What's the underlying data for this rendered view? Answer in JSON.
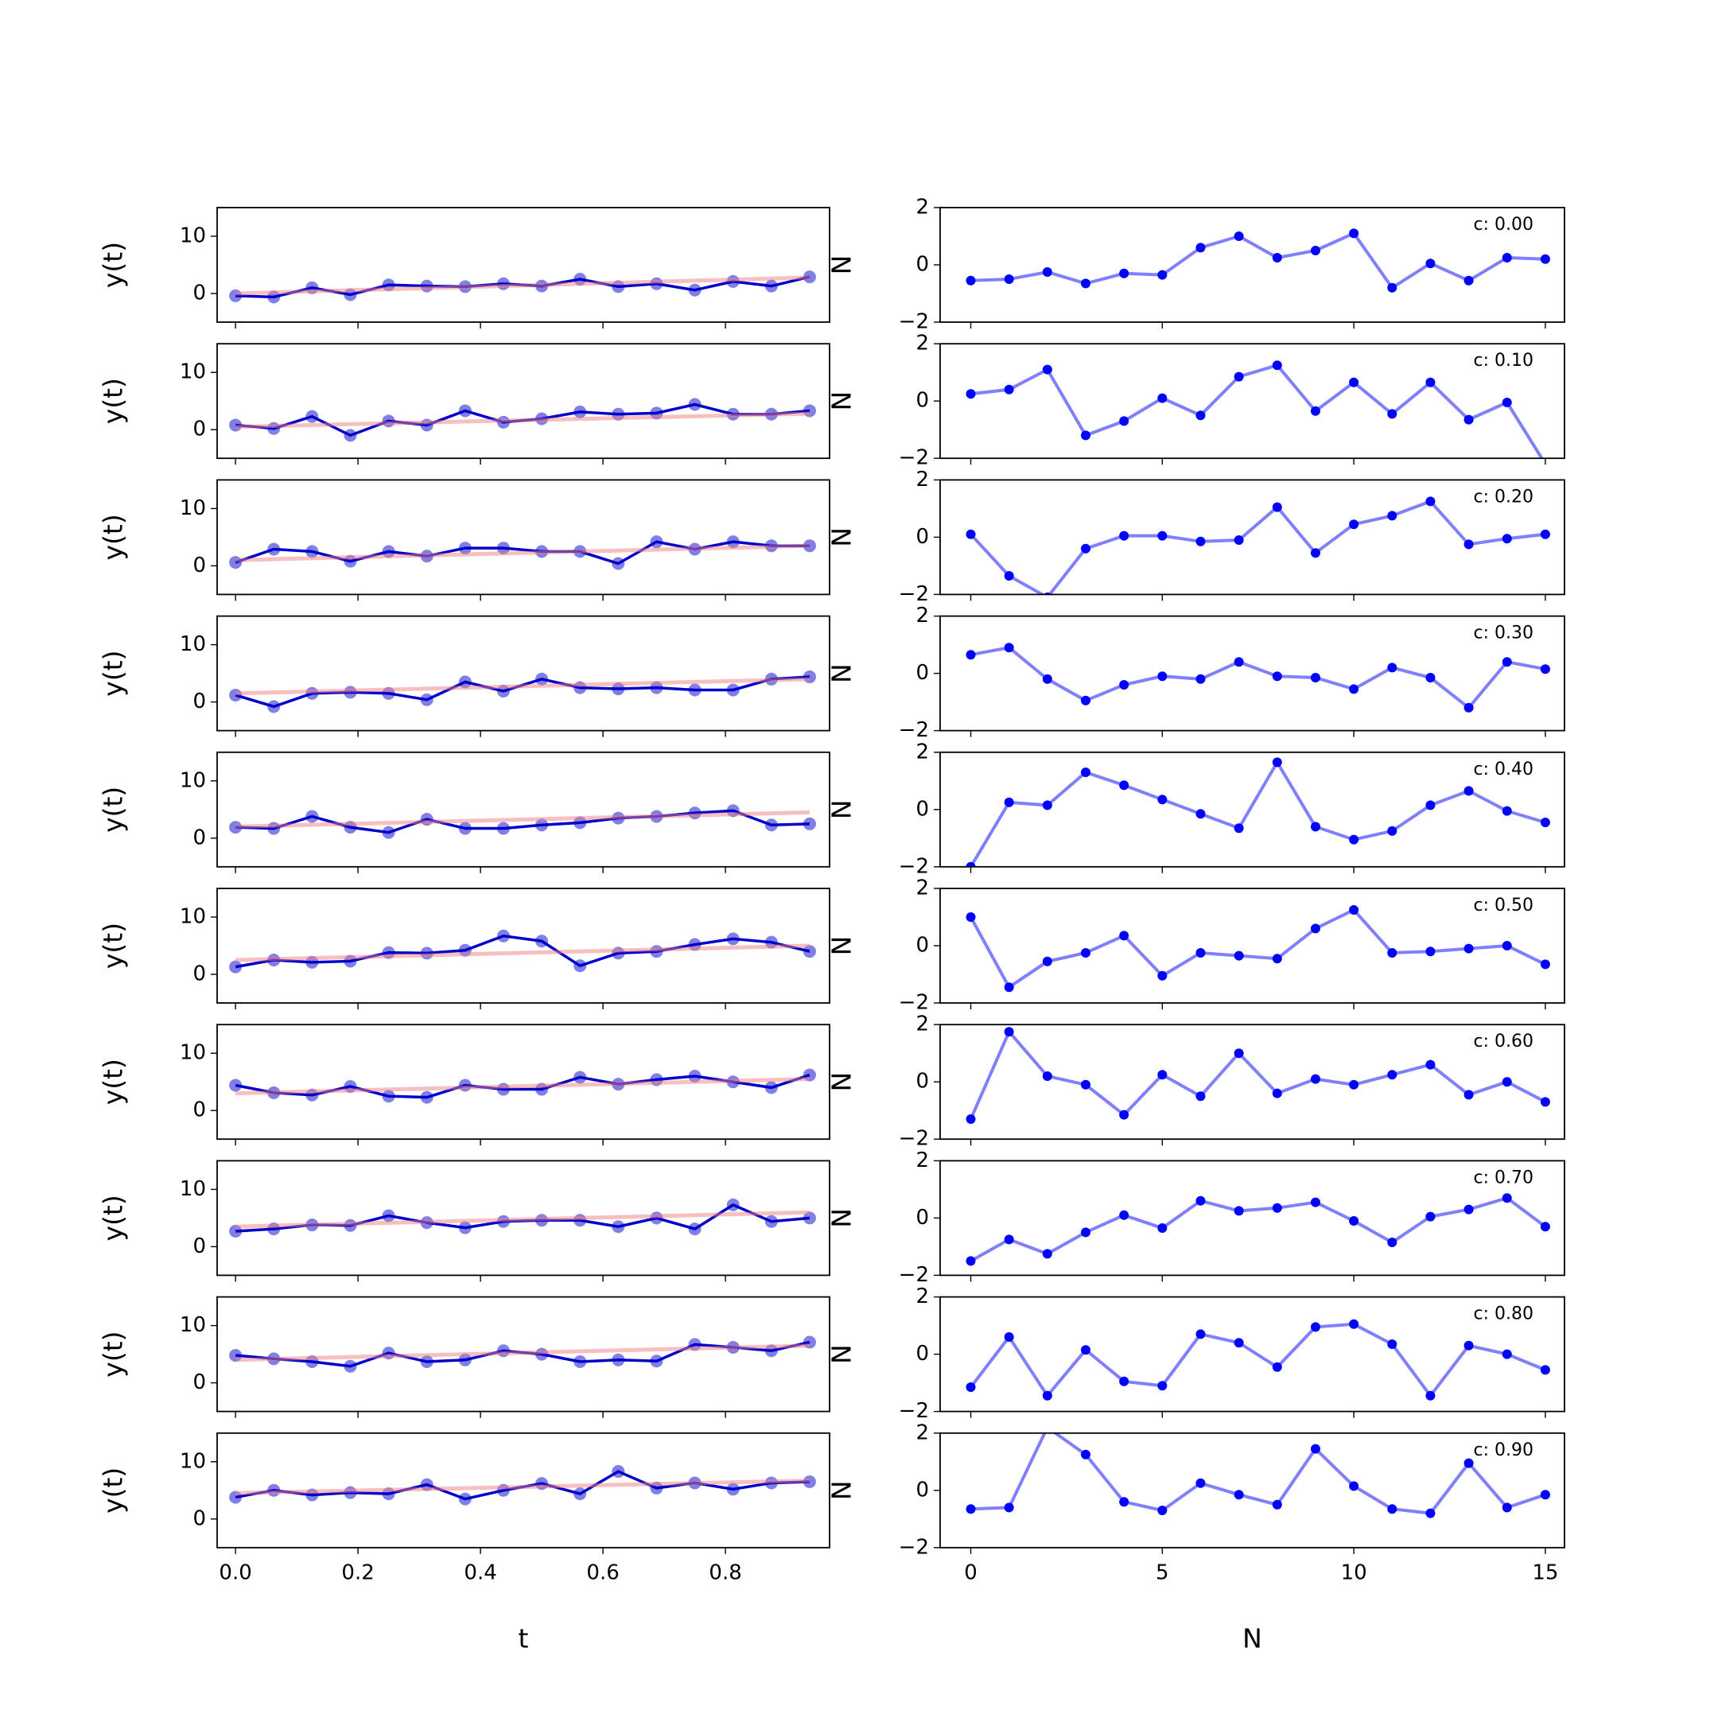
{
  "chart_data": [
    {
      "type": "line",
      "ylabel": "y(t)",
      "x": [
        0,
        0.0625,
        0.125,
        0.1875,
        0.25,
        0.3125,
        0.375,
        0.4375,
        0.5,
        0.5625,
        0.625,
        0.6875,
        0.75,
        0.8125,
        0.875,
        0.9375
      ],
      "xlim": [
        -0.03,
        0.97
      ],
      "ylim": [
        -5,
        15
      ],
      "yticks": [
        0,
        10
      ],
      "series": [
        {
          "color": "#0000cd",
          "values": [
            -0.4,
            -0.6,
            1,
            -0.2,
            1.5,
            1.3,
            1.2,
            1.7,
            1.3,
            2.5,
            1.2,
            1.7,
            0.6,
            2.1,
            1.3,
            2.9
          ]
        },
        {
          "color": "#f08080",
          "x": [
            0,
            0.9375
          ],
          "values": [
            0,
            2.8
          ]
        }
      ]
    },
    {
      "type": "line",
      "ylabel": "N",
      "annotation": "c: 0.00",
      "x": [
        0,
        1,
        2,
        3,
        4,
        5,
        6,
        7,
        8,
        9,
        10,
        11,
        12,
        13,
        14,
        15
      ],
      "xlim": [
        -0.8,
        15.5
      ],
      "ylim": [
        -2,
        2
      ],
      "yticks": [
        {
          "value": -2,
          "label": "−2"
        },
        0,
        2
      ],
      "series": [
        {
          "color": "#0000ff",
          "values": [
            -0.55,
            -0.5,
            -0.25,
            -0.65,
            -0.3,
            -0.35,
            0.6,
            1.0,
            0.25,
            0.5,
            1.1,
            -0.8,
            0.05,
            -0.55,
            0.25,
            0.2
          ]
        }
      ]
    },
    {
      "type": "line",
      "ylabel": "y(t)",
      "x": [
        0,
        0.0625,
        0.125,
        0.1875,
        0.25,
        0.3125,
        0.375,
        0.4375,
        0.5,
        0.5625,
        0.625,
        0.6875,
        0.75,
        0.8125,
        0.875,
        0.9375
      ],
      "xlim": [
        -0.03,
        0.97
      ],
      "ylim": [
        -5,
        15
      ],
      "yticks": [
        0,
        10
      ],
      "series": [
        {
          "color": "#0000cd",
          "values": [
            0.8,
            0.2,
            2.3,
            -1,
            1.5,
            0.8,
            3.3,
            1.3,
            1.9,
            3.1,
            2.7,
            2.9,
            4.4,
            2.7,
            2.7,
            3.3
          ]
        },
        {
          "color": "#f08080",
          "x": [
            0,
            0.9375
          ],
          "values": [
            0.5,
            2.8
          ]
        }
      ]
    },
    {
      "type": "line",
      "ylabel": "N",
      "annotation": "c: 0.10",
      "x": [
        0,
        1,
        2,
        3,
        4,
        5,
        6,
        7,
        8,
        9,
        10,
        11,
        12,
        13,
        14,
        15
      ],
      "xlim": [
        -0.8,
        15.5
      ],
      "ylim": [
        -2,
        2
      ],
      "yticks": [
        {
          "value": -2,
          "label": "−2"
        },
        0,
        2
      ],
      "series": [
        {
          "color": "#0000ff",
          "values": [
            0.25,
            0.4,
            1.1,
            -1.2,
            -0.7,
            0.1,
            -0.5,
            0.85,
            1.25,
            -0.35,
            0.65,
            -0.45,
            0.65,
            -0.65,
            -0.05,
            -2.2
          ]
        }
      ]
    },
    {
      "type": "line",
      "ylabel": "y(t)",
      "x": [
        0,
        0.0625,
        0.125,
        0.1875,
        0.25,
        0.3125,
        0.375,
        0.4375,
        0.5,
        0.5625,
        0.625,
        0.6875,
        0.75,
        0.8125,
        0.875,
        0.9375
      ],
      "xlim": [
        -0.03,
        0.97
      ],
      "ylim": [
        -5,
        15
      ],
      "yticks": [
        0,
        10
      ],
      "series": [
        {
          "color": "#0000cd",
          "values": [
            0.6,
            2.9,
            2.5,
            0.8,
            2.5,
            1.7,
            3.1,
            3.1,
            2.5,
            2.5,
            0.4,
            4.2,
            2.9,
            4.2,
            3.5,
            3.5
          ]
        },
        {
          "color": "#f08080",
          "x": [
            0,
            0.9375
          ],
          "values": [
            1,
            3.5
          ]
        }
      ]
    },
    {
      "type": "line",
      "ylabel": "N",
      "annotation": "c: 0.20",
      "x": [
        0,
        1,
        2,
        3,
        4,
        5,
        6,
        7,
        8,
        9,
        10,
        11,
        12,
        13,
        14,
        15
      ],
      "xlim": [
        -0.8,
        15.5
      ],
      "ylim": [
        -2,
        2
      ],
      "yticks": [
        {
          "value": -2,
          "label": "−2"
        },
        0,
        2
      ],
      "series": [
        {
          "color": "#0000ff",
          "values": [
            0.1,
            -1.35,
            -2.1,
            -0.4,
            0.05,
            0.05,
            -0.15,
            -0.1,
            1.05,
            -0.55,
            0.45,
            0.75,
            1.25,
            -0.25,
            -0.05,
            0.1
          ]
        }
      ]
    },
    {
      "type": "line",
      "ylabel": "y(t)",
      "x": [
        0,
        0.0625,
        0.125,
        0.1875,
        0.25,
        0.3125,
        0.375,
        0.4375,
        0.5,
        0.5625,
        0.625,
        0.6875,
        0.75,
        0.8125,
        0.875,
        0.9375
      ],
      "xlim": [
        -0.03,
        0.97
      ],
      "ylim": [
        -5,
        15
      ],
      "yticks": [
        0,
        10
      ],
      "series": [
        {
          "color": "#0000cd",
          "values": [
            1.2,
            -0.8,
            1.5,
            1.7,
            1.5,
            0.4,
            3.5,
            1.9,
            4,
            2.5,
            2.3,
            2.5,
            2.1,
            2.1,
            4,
            4.4
          ]
        },
        {
          "color": "#f08080",
          "x": [
            0,
            0.9375
          ],
          "values": [
            1.5,
            4
          ]
        }
      ]
    },
    {
      "type": "line",
      "ylabel": "N",
      "annotation": "c: 0.30",
      "x": [
        0,
        1,
        2,
        3,
        4,
        5,
        6,
        7,
        8,
        9,
        10,
        11,
        12,
        13,
        14,
        15
      ],
      "xlim": [
        -0.8,
        15.5
      ],
      "ylim": [
        -2,
        2
      ],
      "yticks": [
        {
          "value": -2,
          "label": "−2"
        },
        0,
        2
      ],
      "series": [
        {
          "color": "#0000ff",
          "values": [
            0.65,
            0.9,
            -0.2,
            -0.95,
            -0.4,
            -0.1,
            -0.2,
            0.4,
            -0.1,
            -0.15,
            -0.55,
            0.2,
            -0.15,
            -1.2,
            0.4,
            0.15
          ]
        }
      ]
    },
    {
      "type": "line",
      "ylabel": "y(t)",
      "x": [
        0,
        0.0625,
        0.125,
        0.1875,
        0.25,
        0.3125,
        0.375,
        0.4375,
        0.5,
        0.5625,
        0.625,
        0.6875,
        0.75,
        0.8125,
        0.875,
        0.9375
      ],
      "xlim": [
        -0.03,
        0.97
      ],
      "ylim": [
        -5,
        15
      ],
      "yticks": [
        0,
        10
      ],
      "series": [
        {
          "color": "#0000cd",
          "values": [
            1.9,
            1.7,
            3.8,
            1.9,
            1,
            3.3,
            1.7,
            1.7,
            2.3,
            2.7,
            3.5,
            3.8,
            4.4,
            4.8,
            2.3,
            2.5
          ]
        },
        {
          "color": "#f08080",
          "x": [
            0,
            0.9375
          ],
          "values": [
            2,
            4.5
          ]
        }
      ]
    },
    {
      "type": "line",
      "ylabel": "N",
      "annotation": "c: 0.40",
      "x": [
        0,
        1,
        2,
        3,
        4,
        5,
        6,
        7,
        8,
        9,
        10,
        11,
        12,
        13,
        14,
        15
      ],
      "xlim": [
        -0.8,
        15.5
      ],
      "ylim": [
        -2,
        2
      ],
      "yticks": [
        {
          "value": -2,
          "label": "−2"
        },
        0,
        2
      ],
      "series": [
        {
          "color": "#0000ff",
          "values": [
            -2.0,
            0.25,
            0.15,
            1.3,
            0.85,
            0.35,
            -0.15,
            -0.65,
            1.65,
            -0.6,
            -1.05,
            -0.75,
            0.15,
            0.65,
            -0.05,
            -0.45
          ]
        }
      ]
    },
    {
      "type": "line",
      "ylabel": "y(t)",
      "x": [
        0,
        0.0625,
        0.125,
        0.1875,
        0.25,
        0.3125,
        0.375,
        0.4375,
        0.5,
        0.5625,
        0.625,
        0.6875,
        0.75,
        0.8125,
        0.875,
        0.9375
      ],
      "xlim": [
        -0.03,
        0.97
      ],
      "ylim": [
        -5,
        15
      ],
      "yticks": [
        0,
        10
      ],
      "series": [
        {
          "color": "#0000cd",
          "values": [
            1.3,
            2.5,
            2.1,
            2.3,
            3.8,
            3.7,
            4.2,
            6.7,
            5.8,
            1.5,
            3.7,
            4,
            5.2,
            6.2,
            5.6,
            4
          ]
        },
        {
          "color": "#f08080",
          "x": [
            0,
            0.9375
          ],
          "values": [
            2.5,
            5
          ]
        }
      ]
    },
    {
      "type": "line",
      "ylabel": "N",
      "annotation": "c: 0.50",
      "x": [
        0,
        1,
        2,
        3,
        4,
        5,
        6,
        7,
        8,
        9,
        10,
        11,
        12,
        13,
        14,
        15
      ],
      "xlim": [
        -0.8,
        15.5
      ],
      "ylim": [
        -2,
        2
      ],
      "yticks": [
        {
          "value": -2,
          "label": "−2"
        },
        0,
        2
      ],
      "series": [
        {
          "color": "#0000ff",
          "values": [
            1.0,
            -1.45,
            -0.55,
            -0.25,
            0.35,
            -1.05,
            -0.25,
            -0.35,
            -0.45,
            0.6,
            1.25,
            -0.25,
            -0.2,
            -0.1,
            0,
            -0.65
          ]
        }
      ]
    },
    {
      "type": "line",
      "ylabel": "y(t)",
      "x": [
        0,
        0.0625,
        0.125,
        0.1875,
        0.25,
        0.3125,
        0.375,
        0.4375,
        0.5,
        0.5625,
        0.625,
        0.6875,
        0.75,
        0.8125,
        0.875,
        0.9375
      ],
      "xlim": [
        -0.03,
        0.97
      ],
      "ylim": [
        -5,
        15
      ],
      "yticks": [
        0,
        10
      ],
      "series": [
        {
          "color": "#0000cd",
          "values": [
            4.4,
            3.1,
            2.7,
            4.2,
            2.5,
            2.3,
            4.4,
            3.7,
            3.7,
            5.8,
            4.6,
            5.4,
            6,
            5,
            4,
            6.2
          ]
        },
        {
          "color": "#f08080",
          "x": [
            0,
            0.9375
          ],
          "values": [
            3,
            5.5
          ]
        }
      ]
    },
    {
      "type": "line",
      "ylabel": "N",
      "annotation": "c: 0.60",
      "x": [
        0,
        1,
        2,
        3,
        4,
        5,
        6,
        7,
        8,
        9,
        10,
        11,
        12,
        13,
        14,
        15
      ],
      "xlim": [
        -0.8,
        15.5
      ],
      "ylim": [
        -2,
        2
      ],
      "yticks": [
        {
          "value": -2,
          "label": "−2"
        },
        0,
        2
      ],
      "series": [
        {
          "color": "#0000ff",
          "values": [
            -1.3,
            1.75,
            0.2,
            -0.1,
            -1.15,
            0.25,
            -0.5,
            1.0,
            -0.4,
            0.1,
            -0.1,
            0.25,
            0.6,
            -0.45,
            0,
            -0.7
          ]
        }
      ]
    },
    {
      "type": "line",
      "ylabel": "y(t)",
      "x": [
        0,
        0.0625,
        0.125,
        0.1875,
        0.25,
        0.3125,
        0.375,
        0.4375,
        0.5,
        0.5625,
        0.625,
        0.6875,
        0.75,
        0.8125,
        0.875,
        0.9375
      ],
      "xlim": [
        -0.03,
        0.97
      ],
      "ylim": [
        -5,
        15
      ],
      "yticks": [
        0,
        10
      ],
      "series": [
        {
          "color": "#0000cd",
          "values": [
            2.7,
            3.1,
            3.8,
            3.7,
            5.4,
            4.2,
            3.3,
            4.4,
            4.6,
            4.6,
            3.5,
            5,
            3.1,
            7.3,
            4.4,
            5
          ]
        },
        {
          "color": "#f08080",
          "x": [
            0,
            0.9375
          ],
          "values": [
            3.5,
            6
          ]
        }
      ]
    },
    {
      "type": "line",
      "ylabel": "N",
      "annotation": "c: 0.70",
      "x": [
        0,
        1,
        2,
        3,
        4,
        5,
        6,
        7,
        8,
        9,
        10,
        11,
        12,
        13,
        14,
        15
      ],
      "xlim": [
        -0.8,
        15.5
      ],
      "ylim": [
        -2,
        2
      ],
      "yticks": [
        {
          "value": -2,
          "label": "−2"
        },
        0,
        2
      ],
      "series": [
        {
          "color": "#0000ff",
          "values": [
            -1.5,
            -0.75,
            -1.25,
            -0.5,
            0.1,
            -0.35,
            0.6,
            0.25,
            0.35,
            0.55,
            -0.1,
            -0.85,
            0.05,
            0.3,
            0.7,
            -0.3
          ]
        }
      ]
    },
    {
      "type": "line",
      "ylabel": "y(t)",
      "x": [
        0,
        0.0625,
        0.125,
        0.1875,
        0.25,
        0.3125,
        0.375,
        0.4375,
        0.5,
        0.5625,
        0.625,
        0.6875,
        0.75,
        0.8125,
        0.875,
        0.9375
      ],
      "xlim": [
        -0.03,
        0.97
      ],
      "ylim": [
        -5,
        15
      ],
      "yticks": [
        0,
        10
      ],
      "series": [
        {
          "color": "#0000cd",
          "values": [
            4.8,
            4.2,
            3.7,
            2.9,
            5.2,
            3.7,
            4,
            5.6,
            5,
            3.7,
            4,
            3.8,
            6.7,
            6.2,
            5.6,
            7.1
          ]
        },
        {
          "color": "#f08080",
          "x": [
            0,
            0.9375
          ],
          "values": [
            4,
            6.5
          ]
        }
      ]
    },
    {
      "type": "line",
      "ylabel": "N",
      "annotation": "c: 0.80",
      "x": [
        0,
        1,
        2,
        3,
        4,
        5,
        6,
        7,
        8,
        9,
        10,
        11,
        12,
        13,
        14,
        15
      ],
      "xlim": [
        -0.8,
        15.5
      ],
      "ylim": [
        -2,
        2
      ],
      "yticks": [
        {
          "value": -2,
          "label": "−2"
        },
        0,
        2
      ],
      "series": [
        {
          "color": "#0000ff",
          "values": [
            -1.15,
            0.6,
            -1.45,
            0.15,
            -0.95,
            -1.1,
            0.7,
            0.4,
            -0.45,
            0.95,
            1.05,
            0.35,
            -1.45,
            0.3,
            0,
            -0.55
          ]
        }
      ]
    },
    {
      "type": "line",
      "ylabel": "y(t)",
      "xlabel": "t",
      "x": [
        0,
        0.0625,
        0.125,
        0.1875,
        0.25,
        0.3125,
        0.375,
        0.4375,
        0.5,
        0.5625,
        0.625,
        0.6875,
        0.75,
        0.8125,
        0.875,
        0.9375
      ],
      "xlim": [
        -0.03,
        0.97
      ],
      "ylim": [
        -5,
        15
      ],
      "yticks": [
        0,
        10
      ],
      "xticks": [
        {
          "value": 0,
          "label": "0.0"
        },
        {
          "value": 0.2,
          "label": "0.2"
        },
        {
          "value": 0.4,
          "label": "0.4"
        },
        {
          "value": 0.6,
          "label": "0.6"
        },
        {
          "value": 0.8,
          "label": "0.8"
        }
      ],
      "series": [
        {
          "color": "#0000cd",
          "values": [
            3.8,
            5,
            4.2,
            4.6,
            4.4,
            6,
            3.5,
            5,
            6.2,
            4.4,
            8.3,
            5.4,
            6.3,
            5.2,
            6.3,
            6.5
          ]
        },
        {
          "color": "#f08080",
          "x": [
            0,
            0.9375
          ],
          "values": [
            4.5,
            6.7
          ]
        }
      ]
    },
    {
      "type": "line",
      "ylabel": "N",
      "xlabel": "N",
      "annotation": "c: 0.90",
      "x": [
        0,
        1,
        2,
        3,
        4,
        5,
        6,
        7,
        8,
        9,
        10,
        11,
        12,
        13,
        14,
        15
      ],
      "xlim": [
        -0.8,
        15.5
      ],
      "ylim": [
        -2,
        2
      ],
      "yticks": [
        {
          "value": -2,
          "label": "−2"
        },
        0,
        2
      ],
      "xticks": [
        0,
        5,
        10,
        15
      ],
      "series": [
        {
          "color": "#0000ff",
          "values": [
            -0.65,
            -0.6,
            2.2,
            1.25,
            -0.4,
            -0.7,
            0.25,
            -0.15,
            -0.5,
            1.45,
            0.15,
            -0.65,
            -0.8,
            0.95,
            -0.6,
            -0.15
          ]
        }
      ]
    }
  ]
}
